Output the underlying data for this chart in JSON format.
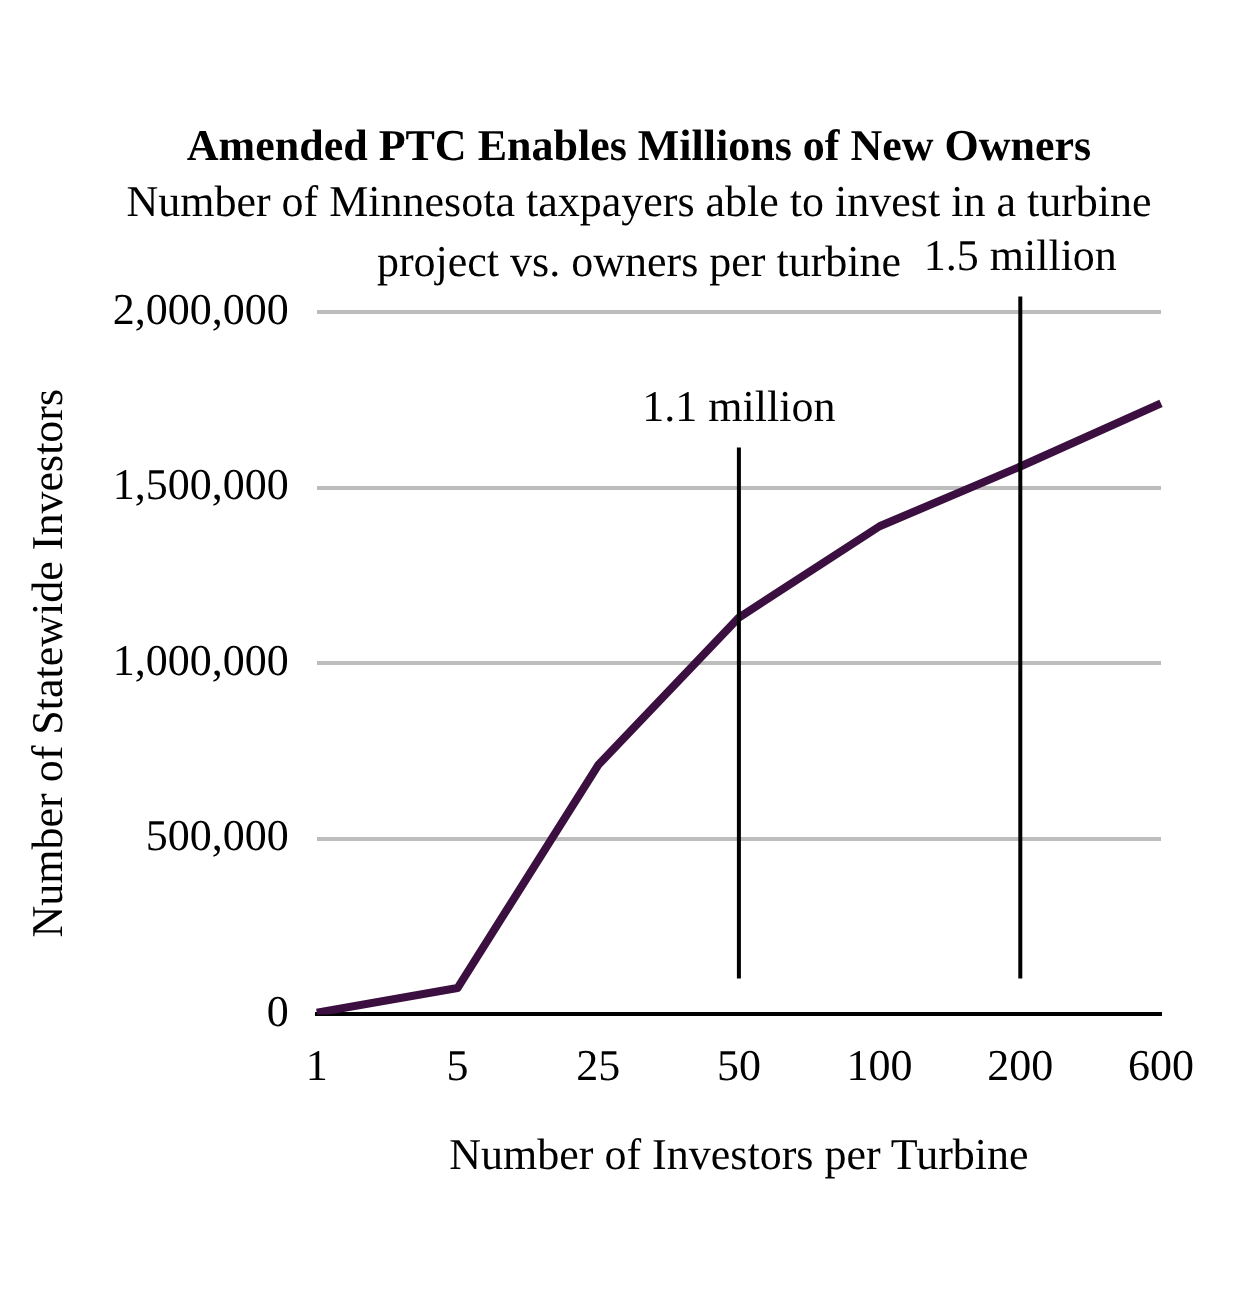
{
  "chart_data": {
    "type": "line",
    "title": "Amended PTC Enables Millions of New Owners",
    "subtitle": "Number of Minnesota taxpayers able to invest in a turbine project vs. owners per turbine",
    "xlabel": "Number of Investors per Turbine",
    "ylabel": "Number of Statewide Investors",
    "categories": [
      "1",
      "5",
      "25",
      "50",
      "100",
      "200",
      "600"
    ],
    "series": [
      {
        "color": "#3b0f3f",
        "values": [
          5000,
          75000,
          710000,
          1130000,
          1390000,
          1560000,
          1740000
        ]
      }
    ],
    "ylim": [
      0,
      2000000
    ],
    "yticks": [
      {
        "value": 0,
        "label": "0"
      },
      {
        "value": 500000,
        "label": "500,000"
      },
      {
        "value": 1000000,
        "label": "1,000,000"
      },
      {
        "value": 1500000,
        "label": "1,500,000"
      },
      {
        "value": 2000000,
        "label": "2,000,000"
      }
    ],
    "grid": "y",
    "legend": false,
    "marker": "none",
    "line_style": "solid",
    "ref_lines": [
      {
        "axis": "x",
        "value": "50",
        "label": "1.1 million",
        "color": "#000000"
      },
      {
        "axis": "x",
        "value": "200",
        "label": "1.5 million",
        "color": "#000000"
      }
    ]
  }
}
